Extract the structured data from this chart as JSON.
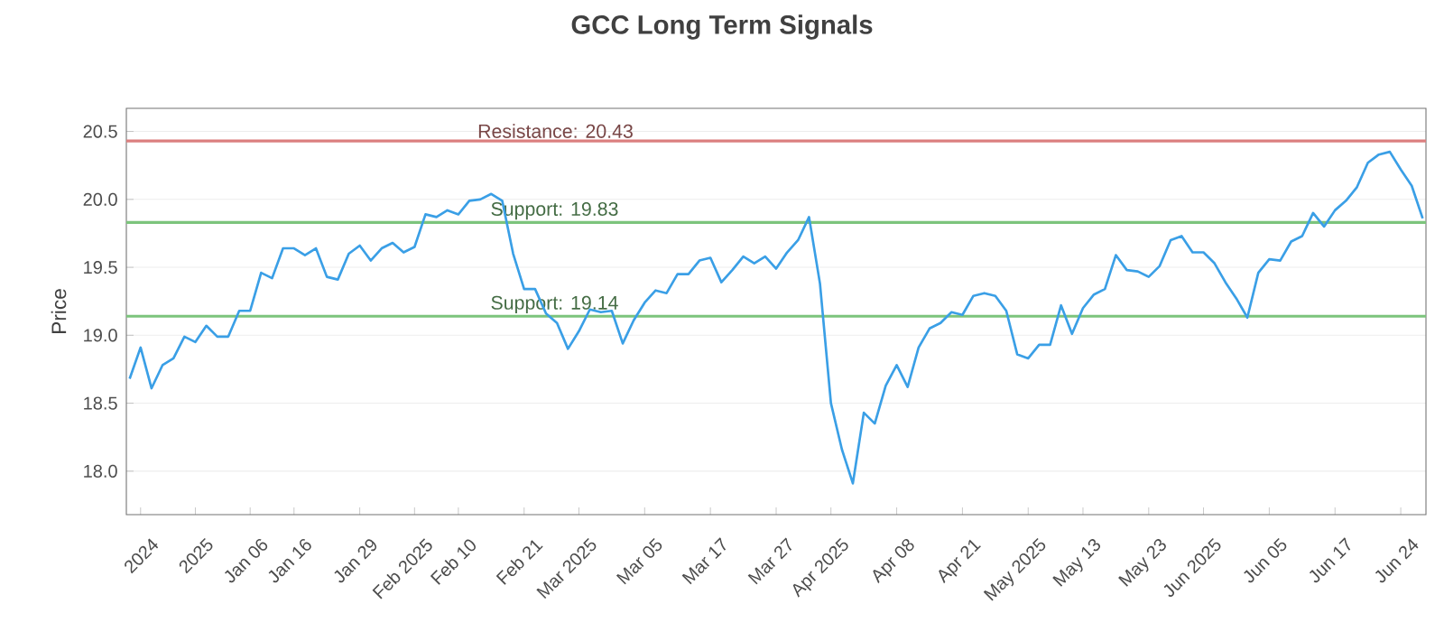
{
  "chart_data": {
    "type": "line",
    "title": "GCC Long Term Signals",
    "ylabel": "Price",
    "categories": [
      null,
      "2024",
      null,
      null,
      null,
      null,
      "2025",
      null,
      null,
      null,
      null,
      "Jan 06",
      null,
      null,
      null,
      "Jan 16",
      null,
      null,
      null,
      null,
      null,
      "Jan 29",
      null,
      null,
      null,
      null,
      "Feb 2025",
      null,
      null,
      null,
      "Feb 10",
      null,
      null,
      null,
      null,
      null,
      "Feb 21",
      null,
      null,
      null,
      null,
      "Mar 2025",
      null,
      null,
      null,
      null,
      null,
      "Mar 05",
      null,
      null,
      null,
      null,
      null,
      "Mar 17",
      null,
      null,
      null,
      null,
      null,
      "Mar 27",
      null,
      null,
      null,
      null,
      "Apr 2025",
      null,
      null,
      null,
      null,
      null,
      "Apr 08",
      null,
      null,
      null,
      null,
      null,
      "Apr 21",
      null,
      null,
      null,
      null,
      null,
      "May 2025",
      null,
      null,
      null,
      null,
      "May 13",
      null,
      null,
      null,
      null,
      null,
      "May 23",
      null,
      null,
      null,
      null,
      "Jun 2025",
      null,
      null,
      null,
      null,
      null,
      "Jun 05",
      null,
      null,
      null,
      null,
      null,
      "Jun 17",
      null,
      null,
      null,
      null,
      null,
      "Jun 24",
      null,
      null
    ],
    "series": [
      {
        "color": "#3a9fe6",
        "values": [
          18.68,
          18.91,
          18.61,
          18.78,
          18.83,
          18.99,
          18.95,
          19.07,
          18.99,
          18.99,
          19.18,
          19.18,
          19.46,
          19.42,
          19.64,
          19.64,
          19.59,
          19.64,
          19.43,
          19.41,
          19.6,
          19.66,
          19.55,
          19.64,
          19.68,
          19.61,
          19.65,
          19.89,
          19.87,
          19.92,
          19.89,
          19.99,
          20.0,
          20.04,
          19.99,
          19.6,
          19.34,
          19.34,
          19.16,
          19.09,
          18.9,
          19.03,
          19.19,
          19.17,
          19.18,
          18.94,
          19.11,
          19.24,
          19.33,
          19.31,
          19.45,
          19.45,
          19.55,
          19.57,
          19.39,
          19.48,
          19.58,
          19.53,
          19.58,
          19.49,
          19.61,
          19.7,
          19.87,
          19.38,
          18.5,
          18.16,
          17.91,
          18.43,
          18.35,
          18.63,
          18.78,
          18.62,
          18.91,
          19.05,
          19.09,
          19.17,
          19.15,
          19.29,
          19.31,
          19.29,
          19.18,
          18.86,
          18.83,
          18.93,
          18.93,
          19.22,
          19.01,
          19.2,
          19.3,
          19.34,
          19.59,
          19.48,
          19.47,
          19.43,
          19.51,
          19.7,
          19.73,
          19.61,
          19.61,
          19.53,
          19.39,
          19.27,
          19.13,
          19.46,
          19.56,
          19.55,
          19.69,
          19.73,
          19.9,
          19.8,
          19.92,
          19.99,
          20.09,
          20.27,
          20.33,
          20.35,
          20.22,
          20.1,
          19.86
        ]
      }
    ],
    "ylim": [
      17.68,
      20.67
    ],
    "yticks": [
      {
        "value": 18,
        "label": "18.0"
      },
      {
        "value": 18.5,
        "label": "18.5"
      },
      {
        "value": 19,
        "label": "19.0"
      },
      {
        "value": 19.5,
        "label": "19.5"
      },
      {
        "value": 20,
        "label": "20.0"
      },
      {
        "value": 20.5,
        "label": "20.5"
      }
    ],
    "grid": "y",
    "ref_lines": [
      {
        "axis": "y",
        "value": 20.43,
        "label": "Resistance: 20.43",
        "color": "#db7f7f"
      },
      {
        "axis": "y",
        "value": 19.83,
        "label": "Support: 19.83",
        "color": "#7cc47c"
      },
      {
        "axis": "y",
        "value": 19.14,
        "label": "Support: 19.14",
        "color": "#7cc47c"
      }
    ]
  }
}
